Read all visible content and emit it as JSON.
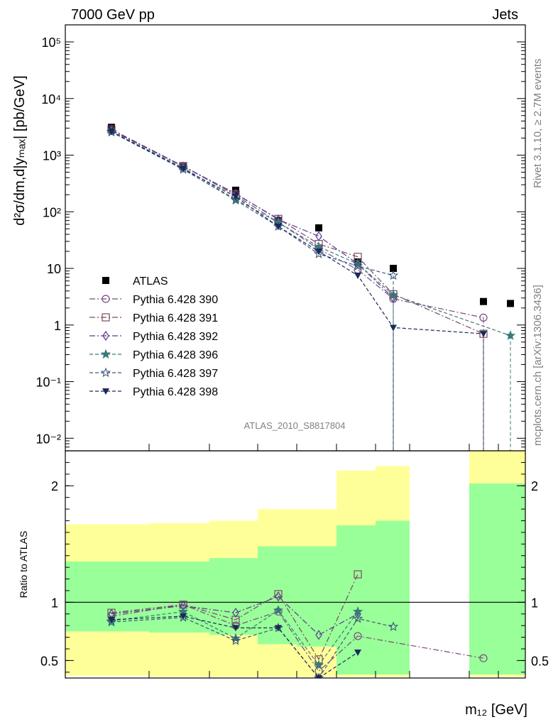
{
  "header": {
    "left": "7000 GeV pp",
    "right": "Jets"
  },
  "side": {
    "rivet": "Rivet 3.1.10, ≥ 2.7M events",
    "mcplots": "mcplots.cern.ch [arXiv:1306.3436]"
  },
  "watermark": "ATLAS_2010_S8817804",
  "xlabel": "m₁₂ [GeV]",
  "ylabel_top": "d²σ/dm,d|yₘₐₓ| [pb/GeV]",
  "ylabel_bottom": "Ratio to ATLAS",
  "colors": {
    "atlas": "#000000",
    "p390": "#7a4a80",
    "p391": "#7a4a62",
    "p392": "#5a3a90",
    "p396": "#3a7a7a",
    "p397": "#3a5a7a",
    "p398": "#1a2a5a",
    "band_yellow": "#ffff99",
    "band_green": "#99ff99"
  },
  "chart_data": [
    {
      "type": "scatter",
      "yscale": "log",
      "ylim": [
        0.006,
        200000
      ],
      "yticks": [
        "10⁻²",
        "10⁻¹",
        "1",
        "10",
        "10²",
        "10³",
        "10⁴",
        "10⁵"
      ],
      "legend_placement": "lower-left",
      "x_bins": 10,
      "series": [
        {
          "name": "ATLAS",
          "marker": "square-filled",
          "points": [
            [
              1,
              3100
            ],
            [
              2,
              650
            ],
            [
              3,
              240
            ],
            [
              4,
              70
            ],
            [
              5,
              52
            ],
            [
              6,
              13
            ],
            [
              7,
              10
            ],
            [
              9,
              2.6
            ],
            [
              10,
              2.4
            ]
          ]
        },
        {
          "name": "Pythia 6.428 390",
          "marker": "circle-open",
          "points": [
            [
              1,
              2700
            ],
            [
              2,
              640
            ],
            [
              3,
              195
            ],
            [
              4,
              65
            ],
            [
              5,
              22
            ],
            [
              6,
              9.5
            ],
            [
              7,
              2.9
            ],
            [
              9,
              1.35
            ]
          ]
        },
        {
          "name": "Pythia 6.428 391",
          "marker": "square-open",
          "points": [
            [
              1,
              2850
            ],
            [
              2,
              640
            ],
            [
              3,
              205
            ],
            [
              4,
              75
            ],
            [
              5,
              27
            ],
            [
              6,
              16
            ],
            [
              7,
              3.5
            ],
            [
              9,
              0.7
            ]
          ]
        },
        {
          "name": "Pythia 6.428 392",
          "marker": "diamond-open",
          "points": [
            [
              1,
              2800
            ],
            [
              2,
              630
            ],
            [
              3,
              210
            ],
            [
              4,
              73
            ],
            [
              5,
              37
            ],
            [
              6,
              12
            ],
            [
              7,
              3.0
            ]
          ]
        },
        {
          "name": "Pythia 6.428 396",
          "marker": "star-filled",
          "points": [
            [
              1,
              2600
            ],
            [
              2,
              600
            ],
            [
              3,
              165
            ],
            [
              4,
              65
            ],
            [
              5,
              24
            ],
            [
              6,
              12
            ],
            [
              7,
              3.4
            ],
            [
              10,
              0.65
            ]
          ]
        },
        {
          "name": "Pythia 6.428 397",
          "marker": "star-open",
          "points": [
            [
              1,
              2550
            ],
            [
              2,
              560
            ],
            [
              3,
              160
            ],
            [
              4,
              55
            ],
            [
              5,
              18
            ],
            [
              6,
              11
            ],
            [
              7,
              7.5
            ]
          ]
        },
        {
          "name": "Pythia 6.428 398",
          "marker": "triangle-down-filled",
          "points": [
            [
              1,
              2600
            ],
            [
              2,
              570
            ],
            [
              3,
              185
            ],
            [
              4,
              55
            ],
            [
              5,
              20
            ],
            [
              6,
              7.5
            ],
            [
              7,
              0.9
            ],
            [
              9,
              0.7
            ]
          ]
        }
      ]
    },
    {
      "type": "scatter",
      "ylabel": "Ratio to ATLAS",
      "ylim": [
        0.35,
        2.3
      ],
      "yticks": [
        "0.5",
        "1",
        "2"
      ],
      "bands": {
        "green": [
          [
            0.75,
            1.35
          ],
          [
            0.74,
            1.35
          ],
          [
            0.72,
            1.38
          ],
          [
            0.64,
            1.48
          ],
          [
            0.62,
            1.48
          ],
          [
            0.38,
            1.66
          ],
          [
            0.38,
            1.7
          ],
          null,
          [
            0.38,
            2.02
          ],
          [
            0.38,
            2.02
          ]
        ],
        "yellow": [
          [
            0.37,
            1.67
          ],
          [
            0.36,
            1.68
          ],
          [
            0.36,
            1.7
          ],
          [
            0.36,
            1.8
          ],
          [
            0.36,
            1.8
          ],
          [
            0.36,
            2.13
          ],
          [
            0.36,
            2.17
          ],
          null,
          [
            0.36,
            2.3
          ],
          [
            0.36,
            2.3
          ]
        ]
      },
      "series": [
        {
          "name": "Pythia 6.428 390",
          "points": [
            [
              1,
              0.88
            ],
            [
              2,
              0.98
            ],
            [
              3,
              0.8
            ],
            [
              4,
              0.92
            ],
            [
              5,
              0.41
            ],
            [
              6,
              0.71
            ],
            [
              9,
              0.52
            ]
          ]
        },
        {
          "name": "Pythia 6.428 391",
          "points": [
            [
              1,
              0.91
            ],
            [
              2,
              0.98
            ],
            [
              3,
              0.85
            ],
            [
              4,
              1.07
            ],
            [
              5,
              0.51
            ],
            [
              6,
              1.24
            ]
          ]
        },
        {
          "name": "Pythia 6.428 392",
          "points": [
            [
              1,
              0.9
            ],
            [
              2,
              0.97
            ],
            [
              3,
              0.91
            ],
            [
              4,
              1.05
            ],
            [
              5,
              0.72
            ],
            [
              6,
              0.9
            ]
          ]
        },
        {
          "name": "Pythia 6.428 396",
          "points": [
            [
              1,
              0.84
            ],
            [
              2,
              0.92
            ],
            [
              3,
              0.69
            ],
            [
              4,
              0.93
            ],
            [
              5,
              0.46
            ],
            [
              6,
              0.92
            ]
          ]
        },
        {
          "name": "Pythia 6.428 397",
          "points": [
            [
              1,
              0.83
            ],
            [
              2,
              0.87
            ],
            [
              3,
              0.67
            ],
            [
              4,
              0.78
            ],
            [
              5,
              0.35
            ],
            [
              6,
              0.86
            ],
            [
              7,
              0.79
            ]
          ]
        },
        {
          "name": "Pythia 6.428 398",
          "points": [
            [
              1,
              0.85
            ],
            [
              2,
              0.88
            ],
            [
              3,
              0.78
            ],
            [
              4,
              0.78
            ],
            [
              5,
              0.35
            ],
            [
              6,
              0.57
            ]
          ]
        }
      ]
    }
  ]
}
